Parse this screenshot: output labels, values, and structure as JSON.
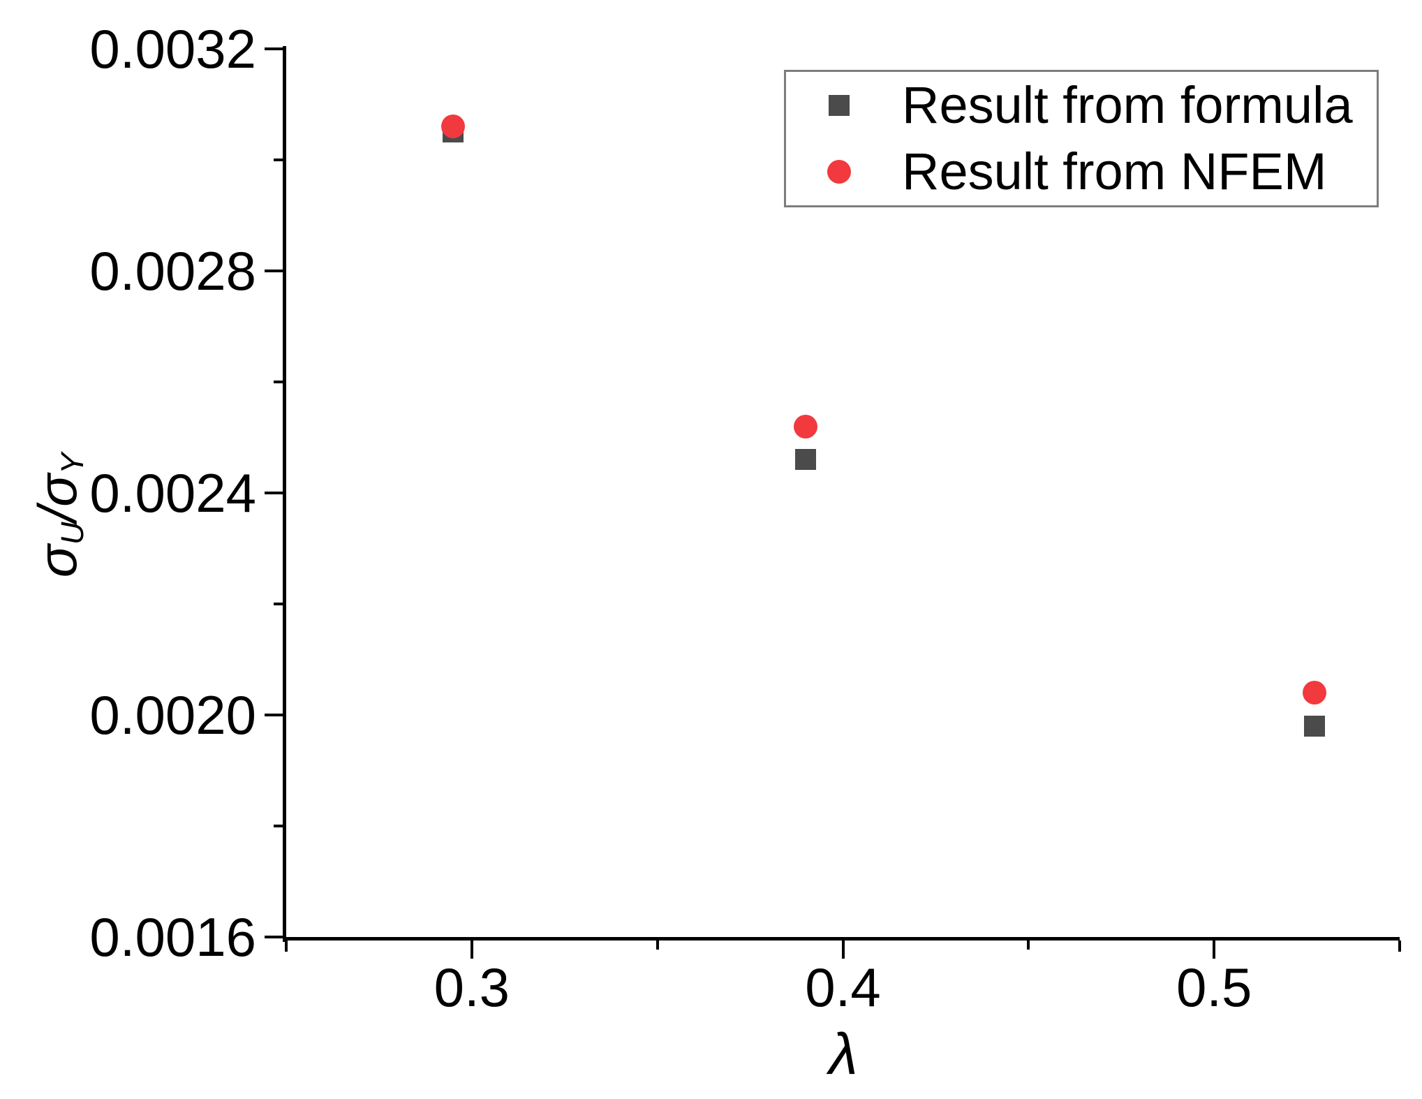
{
  "chart_data": {
    "type": "scatter",
    "title": "",
    "xlabel": "λ",
    "ylabel": "σ_U/σ_Y",
    "xlim": [
      0.25,
      0.55
    ],
    "ylim": [
      0.0016,
      0.0032
    ],
    "grid": false,
    "legend_position": "top-right",
    "x_major_ticks": [
      0.3,
      0.4,
      0.5
    ],
    "x_tick_labels": [
      "0.3",
      "0.4",
      "0.5"
    ],
    "x_minor_ticks": [
      0.35,
      0.45
    ],
    "x_edge_ticks": [
      0.25,
      0.55
    ],
    "y_major_ticks": [
      0.0016,
      0.002,
      0.0024,
      0.0028,
      0.0032
    ],
    "y_tick_labels": [
      "0.0016",
      "0.0020",
      "0.0024",
      "0.0028",
      "0.0032"
    ],
    "y_minor_ticks": [
      0.0018,
      0.0022,
      0.0026,
      0.003
    ],
    "series": [
      {
        "name": "Result from formula",
        "marker": "square",
        "color": "#4b4b4b",
        "points": [
          [
            0.295,
            0.00305
          ],
          [
            0.39,
            0.00246
          ],
          [
            0.527,
            0.00198
          ]
        ]
      },
      {
        "name": "Result from NFEM",
        "marker": "circle",
        "color": "#f2393e",
        "points": [
          [
            0.295,
            0.00306
          ],
          [
            0.39,
            0.00252
          ],
          [
            0.527,
            0.00204
          ]
        ]
      }
    ]
  },
  "axes": {
    "x_label": "λ",
    "y_label": {
      "sigma1": "σ",
      "sub1": "U",
      "slash": "/",
      "sigma2": "σ",
      "sub2": "Y"
    },
    "axis_color": "#000000"
  },
  "legend": {
    "border_color": "#7d7d7d",
    "items": [
      {
        "label": "Result from formula",
        "marker": "square",
        "color": "#4b4b4b"
      },
      {
        "label": "Result from NFEM",
        "marker": "circle",
        "color": "#f2393e"
      }
    ]
  }
}
